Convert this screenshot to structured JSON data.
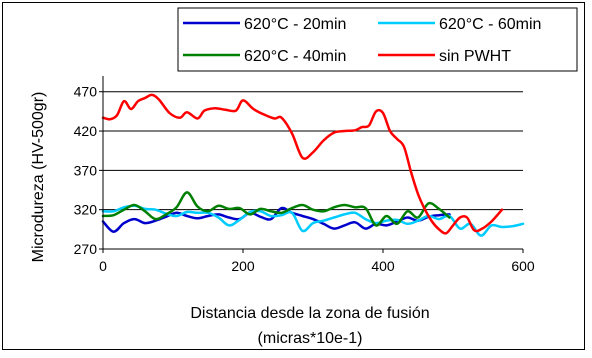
{
  "chart_data": {
    "type": "line",
    "title": "",
    "xlabel_line1": "Distancia desde la zona de fusión",
    "xlabel_line2": "(micras*10e-1)",
    "ylabel": "Microdureza (HV-500gr)",
    "xlim": [
      0,
      600
    ],
    "ylim": [
      270,
      490
    ],
    "xticks": [
      0,
      200,
      400,
      600
    ],
    "yticks": [
      270,
      320,
      370,
      420,
      470
    ],
    "grid": "horizontal",
    "legend_position": "top-right",
    "series": [
      {
        "name": "620°C - 20min",
        "color": "#0000cc",
        "x": [
          0,
          15,
          30,
          45,
          60,
          75,
          90,
          105,
          120,
          135,
          150,
          165,
          180,
          195,
          210,
          225,
          240,
          255,
          270,
          285,
          300,
          315,
          330,
          345,
          360,
          375,
          390,
          405,
          420,
          435,
          450,
          465,
          480,
          495
        ],
        "y": [
          305,
          292,
          303,
          308,
          303,
          306,
          311,
          316,
          312,
          309,
          312,
          314,
          310,
          308,
          316,
          311,
          308,
          322,
          316,
          312,
          308,
          302,
          296,
          300,
          304,
          296,
          302,
          300,
          305,
          310,
          306,
          311,
          313,
          314
        ]
      },
      {
        "name": "620°C - 60min",
        "color": "#00ccff",
        "x": [
          0,
          15,
          30,
          45,
          60,
          75,
          90,
          105,
          120,
          135,
          150,
          165,
          180,
          195,
          210,
          225,
          240,
          255,
          270,
          285,
          300,
          315,
          330,
          345,
          360,
          375,
          390,
          405,
          420,
          435,
          450,
          465,
          480,
          495,
          510,
          525,
          540,
          555,
          570,
          585,
          600
        ],
        "y": [
          318,
          318,
          323,
          325,
          321,
          320,
          315,
          312,
          317,
          316,
          316,
          310,
          300,
          307,
          317,
          318,
          312,
          313,
          316,
          293,
          303,
          306,
          310,
          314,
          316,
          308,
          303,
          306,
          307,
          302,
          306,
          312,
          308,
          312,
          296,
          302,
          287,
          300,
          298,
          299,
          302
        ]
      },
      {
        "name": "620°C - 40min",
        "color": "#008000",
        "x": [
          0,
          15,
          30,
          45,
          60,
          75,
          90,
          105,
          120,
          135,
          150,
          165,
          180,
          195,
          210,
          225,
          240,
          255,
          270,
          285,
          300,
          315,
          330,
          345,
          360,
          375,
          390,
          405,
          420,
          435,
          450,
          465,
          480,
          495
        ],
        "y": [
          312,
          313,
          320,
          326,
          318,
          308,
          314,
          323,
          342,
          324,
          318,
          325,
          321,
          322,
          314,
          321,
          318,
          316,
          322,
          326,
          320,
          318,
          323,
          326,
          323,
          322,
          300,
          312,
          302,
          318,
          310,
          328,
          321,
          310
        ]
      },
      {
        "name": "sin PWHT",
        "color": "#ff0000",
        "x": [
          0,
          10,
          20,
          30,
          40,
          50,
          60,
          70,
          80,
          95,
          110,
          120,
          135,
          145,
          160,
          175,
          190,
          200,
          215,
          230,
          245,
          255,
          270,
          285,
          300,
          315,
          330,
          345,
          360,
          370,
          380,
          390,
          400,
          410,
          420,
          430,
          440,
          450,
          460,
          470,
          480,
          490,
          500,
          510,
          520,
          530,
          540,
          555,
          570
        ],
        "y": [
          437,
          435,
          440,
          458,
          448,
          458,
          462,
          466,
          460,
          443,
          437,
          444,
          436,
          446,
          449,
          447,
          446,
          459,
          448,
          441,
          436,
          437,
          417,
          386,
          393,
          408,
          418,
          420,
          421,
          425,
          427,
          445,
          443,
          420,
          410,
          400,
          368,
          340,
          320,
          305,
          295,
          290,
          300,
          310,
          310,
          294,
          295,
          305,
          320
        ]
      }
    ]
  }
}
